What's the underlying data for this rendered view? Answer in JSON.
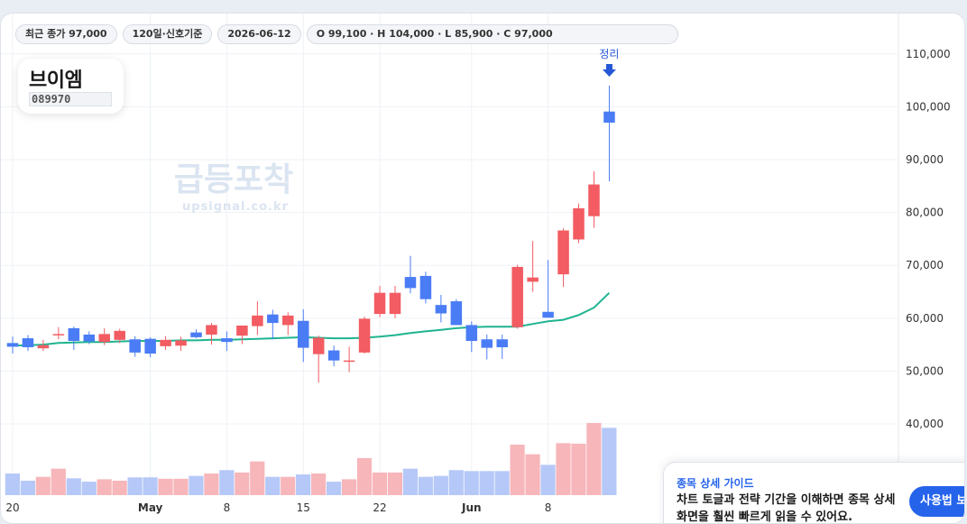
{
  "info_bar": {
    "last_close": "최근 종가 97,000",
    "period": "120일·신호기준",
    "date": "2026-06-12",
    "ohlc": "O 99,100 · H 104,000 · L 85,900 · C 97,000"
  },
  "stock": {
    "name": "브이엠",
    "code": "089970"
  },
  "watermark": {
    "title": "급등포착",
    "url": "upsignal.co.kr"
  },
  "signal": {
    "label": "정리",
    "color": "#2557d6"
  },
  "guide": {
    "kicker": "종목 상세 가이드",
    "body": "차트 토글과 전략 기간을 이해하면 종목 상세 화면을 훨씬 빠르게 읽을 수 있어요.",
    "button": "사용법 보기"
  },
  "colors": {
    "up": "#f25c62",
    "down": "#4a7cf5",
    "ma": "#1fb48f",
    "up_volume": "#f7b6ba",
    "down_volume": "#b5c8f7"
  },
  "chart_data": {
    "type": "candlestick",
    "y_ticks": [
      "40,000",
      "50,000",
      "60,000",
      "70,000",
      "80,000",
      "90,000",
      "100,000",
      "110,000"
    ],
    "ylim": [
      35000,
      113000
    ],
    "x_ticks": [
      {
        "label": "20",
        "index": 0
      },
      {
        "label": "May",
        "index": 9
      },
      {
        "label": "8",
        "index": 14
      },
      {
        "label": "15",
        "index": 19
      },
      {
        "label": "22",
        "index": 24
      },
      {
        "label": "Jun",
        "index": 30
      },
      {
        "label": "8",
        "index": 35
      }
    ],
    "grid": true,
    "candles": [
      {
        "o": 55300,
        "h": 56500,
        "l": 53300,
        "c": 54600
      },
      {
        "o": 56200,
        "h": 56800,
        "l": 53800,
        "c": 54500
      },
      {
        "o": 54300,
        "h": 55900,
        "l": 53800,
        "c": 54900
      },
      {
        "o": 56900,
        "h": 58300,
        "l": 56000,
        "c": 57000
      },
      {
        "o": 58100,
        "h": 58400,
        "l": 54000,
        "c": 55700
      },
      {
        "o": 56900,
        "h": 57500,
        "l": 55100,
        "c": 55600
      },
      {
        "o": 55500,
        "h": 58100,
        "l": 54900,
        "c": 57000
      },
      {
        "o": 55900,
        "h": 58000,
        "l": 55300,
        "c": 57600
      },
      {
        "o": 56000,
        "h": 56600,
        "l": 52700,
        "c": 53500
      },
      {
        "o": 56100,
        "h": 56400,
        "l": 52600,
        "c": 53300
      },
      {
        "o": 54700,
        "h": 56600,
        "l": 54000,
        "c": 55900
      },
      {
        "o": 54800,
        "h": 56500,
        "l": 53800,
        "c": 55800
      },
      {
        "o": 57300,
        "h": 57900,
        "l": 56200,
        "c": 56400
      },
      {
        "o": 56900,
        "h": 59100,
        "l": 55000,
        "c": 58700
      },
      {
        "o": 56200,
        "h": 57500,
        "l": 53800,
        "c": 55500
      },
      {
        "o": 56700,
        "h": 58600,
        "l": 55100,
        "c": 58600
      },
      {
        "o": 58500,
        "h": 63200,
        "l": 56800,
        "c": 60500
      },
      {
        "o": 60700,
        "h": 61600,
        "l": 56000,
        "c": 59100
      },
      {
        "o": 58700,
        "h": 61100,
        "l": 56800,
        "c": 60500
      },
      {
        "o": 59500,
        "h": 61700,
        "l": 51700,
        "c": 54400
      },
      {
        "o": 53200,
        "h": 56700,
        "l": 47800,
        "c": 56300
      },
      {
        "o": 53900,
        "h": 54800,
        "l": 50900,
        "c": 52000
      },
      {
        "o": 52000,
        "h": 54600,
        "l": 49800,
        "c": 52000
      },
      {
        "o": 53500,
        "h": 60300,
        "l": 53300,
        "c": 59900
      },
      {
        "o": 60800,
        "h": 66100,
        "l": 60200,
        "c": 64800
      },
      {
        "o": 60800,
        "h": 66100,
        "l": 60000,
        "c": 64800
      },
      {
        "o": 67800,
        "h": 71800,
        "l": 64700,
        "c": 65700
      },
      {
        "o": 68000,
        "h": 68800,
        "l": 62800,
        "c": 63600
      },
      {
        "o": 62500,
        "h": 64400,
        "l": 59200,
        "c": 60900
      },
      {
        "o": 63200,
        "h": 63600,
        "l": 58700,
        "c": 58700
      },
      {
        "o": 58700,
        "h": 59400,
        "l": 53600,
        "c": 55700
      },
      {
        "o": 56000,
        "h": 56900,
        "l": 52200,
        "c": 54400
      },
      {
        "o": 56000,
        "h": 56900,
        "l": 52300,
        "c": 54500
      },
      {
        "o": 58300,
        "h": 70100,
        "l": 58000,
        "c": 69700
      },
      {
        "o": 66900,
        "h": 74600,
        "l": 65000,
        "c": 67700
      },
      {
        "o": 61200,
        "h": 71000,
        "l": 60100,
        "c": 60100
      },
      {
        "o": 68300,
        "h": 77000,
        "l": 65900,
        "c": 76600
      },
      {
        "o": 74900,
        "h": 81700,
        "l": 74200,
        "c": 80800
      },
      {
        "o": 79300,
        "h": 87800,
        "l": 77100,
        "c": 85300
      },
      {
        "o": 99100,
        "h": 104000,
        "l": 85900,
        "c": 97000
      }
    ],
    "ma": [
      54800,
      54900,
      55000,
      55300,
      55400,
      55500,
      55500,
      55600,
      55700,
      55700,
      55700,
      55800,
      55800,
      55900,
      55900,
      56000,
      56100,
      56200,
      56300,
      56400,
      56300,
      56200,
      56200,
      56300,
      56500,
      56800,
      57200,
      57500,
      57800,
      58100,
      58300,
      58400,
      58400,
      58400,
      58900,
      59400,
      59700,
      60600,
      62000,
      64800
    ],
    "volume": [
      0.45,
      0.3,
      0.38,
      0.55,
      0.35,
      0.28,
      0.33,
      0.3,
      0.37,
      0.37,
      0.34,
      0.34,
      0.4,
      0.45,
      0.52,
      0.47,
      0.7,
      0.38,
      0.38,
      0.43,
      0.45,
      0.28,
      0.33,
      0.77,
      0.47,
      0.47,
      0.55,
      0.38,
      0.4,
      0.52,
      0.5,
      0.5,
      0.5,
      1.05,
      0.85,
      0.63,
      1.08,
      1.07,
      1.5,
      1.4
    ]
  }
}
